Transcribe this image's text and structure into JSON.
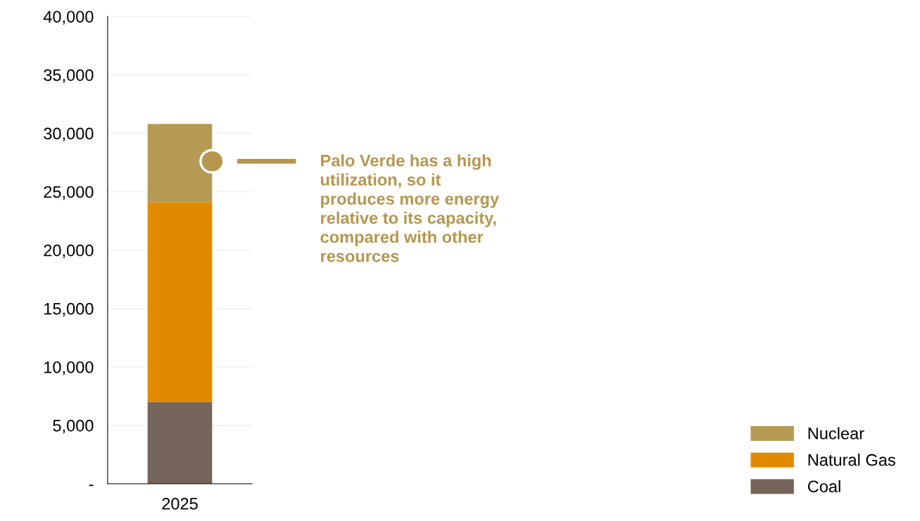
{
  "chart_data": {
    "type": "bar",
    "stacked": true,
    "categories": [
      "2025"
    ],
    "series": [
      {
        "name": "Coal",
        "color": "#76655a",
        "values": [
          7000
        ]
      },
      {
        "name": "Natural Gas",
        "color": "#e08a00",
        "values": [
          17100
        ]
      },
      {
        "name": "Nuclear",
        "color": "#b59a55",
        "values": [
          6700
        ]
      }
    ],
    "ylim": [
      0,
      40000
    ],
    "yticks": [
      {
        "value": 0,
        "label": "-"
      },
      {
        "value": 5000,
        "label": "5,000"
      },
      {
        "value": 10000,
        "label": "10,000"
      },
      {
        "value": 15000,
        "label": "15,000"
      },
      {
        "value": 20000,
        "label": "20,000"
      },
      {
        "value": 25000,
        "label": "25,000"
      },
      {
        "value": 30000,
        "label": "30,000"
      },
      {
        "value": 35000,
        "label": "35,000"
      },
      {
        "value": 40000,
        "label": "40,000"
      }
    ],
    "grid": "y",
    "legend": "bottom right",
    "annotations": [
      "Palo Verde has a high\nutilization, so it\nproduces more energy\nrelative to its capacity,\ncompared with other\nresources"
    ]
  }
}
